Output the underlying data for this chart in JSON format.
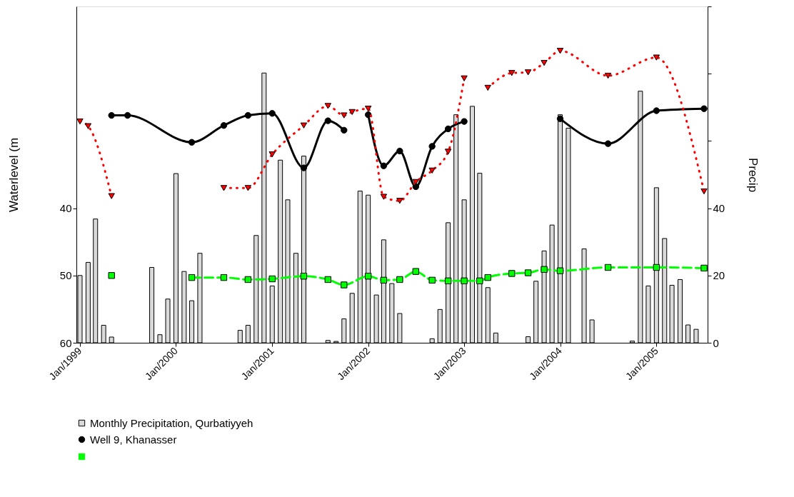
{
  "chart_data": {
    "type": "line",
    "ylabel": "Waterlevel (m",
    "y2label": "Precip",
    "legend": "bottom left",
    "xlim": [
      "1999-01",
      "2005-07"
    ],
    "xticks": [
      {
        "value": "1999-01",
        "label": "Jan/1999"
      },
      {
        "value": "2000-01",
        "label": "Jan/2000"
      },
      {
        "value": "2001-01",
        "label": "Jan/2001"
      },
      {
        "value": "2002-01",
        "label": "Jan/2002"
      },
      {
        "value": "2003-01",
        "label": "Jan/2003"
      },
      {
        "value": "2004-01",
        "label": "Jan/2004"
      },
      {
        "value": "2005-01",
        "label": "Jan/2005"
      }
    ],
    "ylim": [
      60,
      10
    ],
    "yticks": [
      40,
      50,
      60
    ],
    "y2lim": [
      0,
      100
    ],
    "y2ticks": [
      0,
      20,
      40,
      {
        "value": 60,
        "label": null
      },
      {
        "value": 80,
        "label": null
      },
      {
        "value": 100,
        "label": null
      }
    ],
    "series": [
      {
        "name": "Monthly Precipitation, Qurbatiyyeh",
        "type": "bar",
        "axis": "y2",
        "color": "#d9d9d9",
        "x": [
          "1999-01",
          "1999-02",
          "1999-03",
          "1999-04",
          "1999-05",
          "1999-10",
          "1999-11",
          "1999-12",
          "2000-01",
          "2000-02",
          "2000-03",
          "2000-04",
          "2000-09",
          "2000-10",
          "2000-11",
          "2000-12",
          "2001-01",
          "2001-02",
          "2001-03",
          "2001-04",
          "2001-05",
          "2001-08",
          "2001-09",
          "2001-10",
          "2001-11",
          "2001-12",
          "2002-01",
          "2002-02",
          "2002-03",
          "2002-04",
          "2002-05",
          "2002-09",
          "2002-10",
          "2002-11",
          "2002-12",
          "2003-01",
          "2003-02",
          "2003-03",
          "2003-04",
          "2003-05",
          "2003-09",
          "2003-10",
          "2003-11",
          "2003-12",
          "2004-01",
          "2004-02",
          "2004-04",
          "2004-05",
          "2004-10",
          "2004-11",
          "2004-12",
          "2005-01",
          "2005-02",
          "2005-03",
          "2005-04",
          "2005-05",
          "2005-06"
        ],
        "values": [
          20.0,
          23.9,
          36.8,
          5.2,
          1.7,
          22.4,
          2.4,
          13.0,
          50.3,
          21.2,
          12.5,
          26.6,
          3.7,
          5.2,
          31.9,
          80.2,
          16.9,
          54.3,
          42.5,
          26.6,
          55.5,
          0.7,
          0.4,
          7.1,
          14.7,
          45.1,
          43.9,
          14.2,
          30.6,
          17.6,
          8.7,
          1.2,
          9.9,
          35.7,
          67.8,
          42.5,
          70.3,
          50.4,
          16.4,
          2.9,
          1.8,
          18.3,
          27.3,
          35.0,
          67.8,
          63.8,
          27.9,
          6.8,
          0.5,
          74.8,
          16.9,
          46.1,
          31.0,
          17.1,
          18.8,
          5.3,
          4.0
        ]
      },
      {
        "name": "Well 9, Khanasser",
        "color": "#000000",
        "marker": "circle",
        "line_style": "solid",
        "x": [
          "1999-05",
          "1999-07",
          "2000-03",
          "2000-07",
          "2000-10",
          "2001-01",
          "2001-05",
          "2001-08",
          "2001-10",
          "2001-12",
          "2002-01",
          "2002-03",
          "2002-05",
          "2002-07",
          "2002-09",
          "2002-11",
          "2003-01",
          "2003-07",
          "2004-01",
          "2004-07",
          "2005-01",
          "2005-07"
        ],
        "values": [
          26.2,
          26.2,
          30.2,
          27.7,
          26.2,
          25.9,
          34.0,
          27.0,
          28.4,
          null,
          26.1,
          33.7,
          31.5,
          36.8,
          30.8,
          28.2,
          27.1,
          null,
          26.7,
          30.4,
          25.5,
          25.2
        ]
      },
      {
        "color": "#ff0000",
        "marker": "triangle",
        "line_style": "dotted",
        "x": [
          "1999-01",
          "1999-02",
          "1999-05",
          "1999-12",
          "2000-07",
          "2000-10",
          "2001-01",
          "2001-05",
          "2001-08",
          "2001-10",
          "2001-11",
          "2002-01",
          "2002-03",
          "2002-05",
          "2002-07",
          "2002-09",
          "2002-11",
          "2003-01",
          "2003-02",
          "2003-04",
          "2003-07",
          "2003-09",
          "2003-11",
          "2004-01",
          "2004-07",
          "2005-01",
          "2005-07"
        ],
        "values": [
          27.1,
          27.8,
          38.2,
          null,
          37.0,
          37.0,
          32.0,
          27.7,
          24.8,
          26.2,
          25.7,
          25.2,
          38.3,
          38.9,
          36.1,
          34.4,
          31.6,
          20.7,
          null,
          22.1,
          19.9,
          19.8,
          18.4,
          16.6,
          20.3,
          17.6,
          37.5
        ]
      },
      {
        "color": "#00ff00",
        "marker": "square",
        "line_style": "dashed",
        "x": [
          "1999-05",
          "1999-12",
          "2000-03",
          "2000-07",
          "2000-10",
          "2001-01",
          "2001-05",
          "2001-08",
          "2001-10",
          "2002-01",
          "2002-03",
          "2002-05",
          "2002-07",
          "2002-09",
          "2002-11",
          "2003-01",
          "2003-03",
          "2003-04",
          "2003-07",
          "2003-09",
          "2003-11",
          "2004-01",
          "2004-07",
          "2005-01",
          "2005-07"
        ],
        "values": [
          50.0,
          null,
          50.3,
          50.3,
          50.6,
          50.5,
          50.1,
          50.6,
          51.4,
          50.1,
          50.7,
          50.6,
          49.4,
          50.7,
          50.8,
          50.8,
          50.8,
          50.3,
          49.7,
          49.6,
          49.1,
          49.3,
          48.8,
          48.8,
          48.9
        ]
      }
    ]
  }
}
